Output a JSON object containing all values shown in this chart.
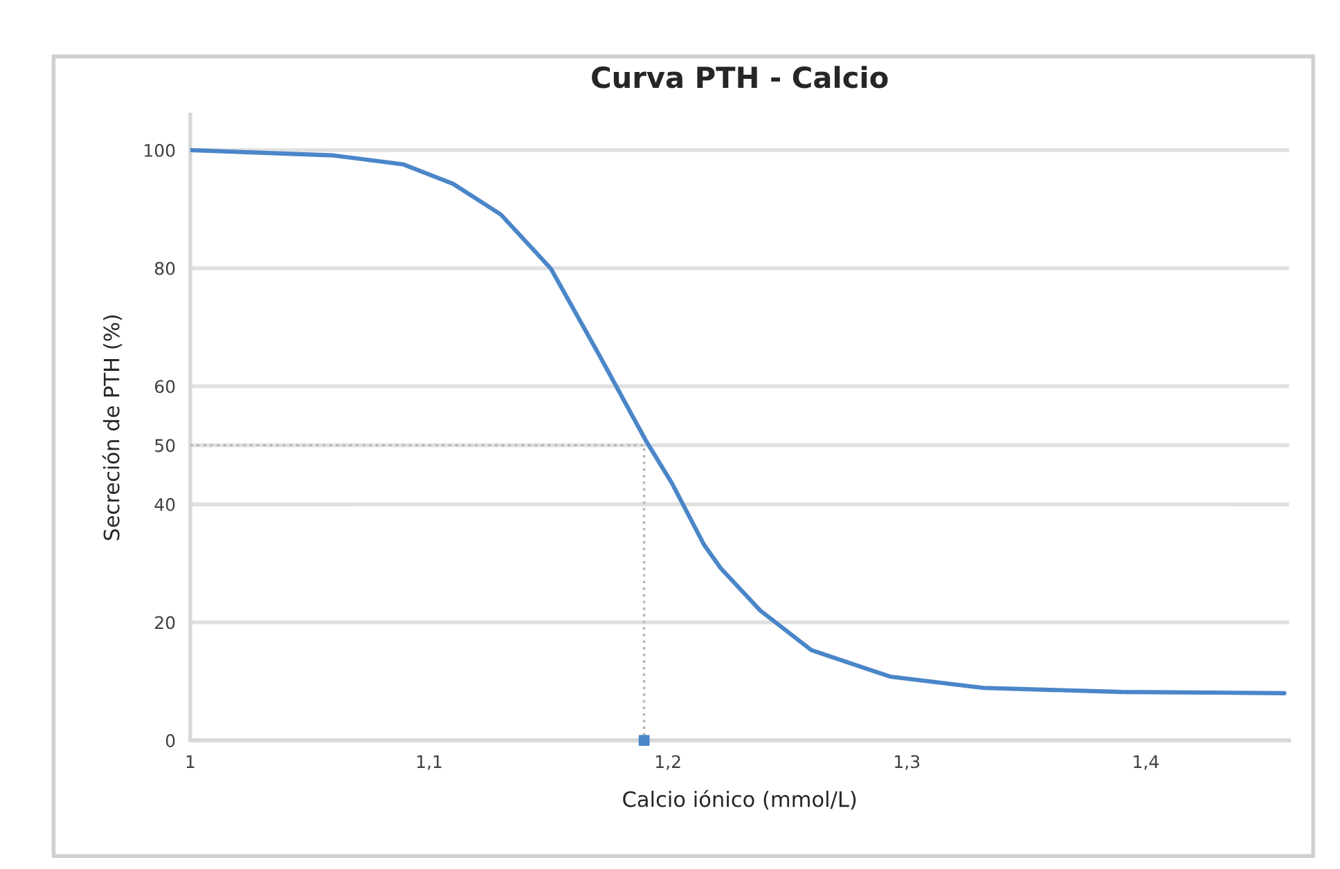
{
  "chart_data": {
    "type": "line",
    "title": "Curva PTH - Calcio",
    "xlabel": "Calcio iónico (mmol/L)",
    "ylabel": "Secreción de PTH (%)",
    "xlim": [
      1,
      1.46
    ],
    "xticks": [
      1,
      {
        "value": 1.1,
        "label": "1,1"
      },
      {
        "value": 1.2,
        "label": "1,2"
      },
      {
        "value": 1.3,
        "label": "1,3"
      },
      {
        "value": 1.4,
        "label": "1,4"
      }
    ],
    "ylim": [
      0,
      106
    ],
    "yticks": [
      0,
      20,
      40,
      50,
      60,
      80,
      100
    ],
    "grid": "y",
    "legend": false,
    "series": [
      {
        "color": "#4a86c8",
        "line_style": "solid",
        "marker": "none",
        "x": [
          1.0,
          1.06,
          1.089,
          1.11,
          1.13,
          1.151,
          1.172,
          1.191,
          1.2016,
          1.215,
          1.222,
          1.2386,
          1.26,
          1.293,
          1.332,
          1.39,
          1.458
        ],
        "values": [
          100,
          99.1,
          97.6,
          94.3,
          89.1,
          79.9,
          64.7,
          50.6,
          43.6,
          33.2,
          29.2,
          22.0,
          15.3,
          10.8,
          8.9,
          8.2,
          8.0
        ]
      },
      {
        "color": "#b8b8b8",
        "line_style": "dotted",
        "marker": "none",
        "x": [
          1.0,
          1.19,
          1.19
        ],
        "values": [
          50,
          50,
          0
        ]
      },
      {
        "type": "scatter",
        "color": "#4a86c8",
        "marker": "square",
        "x": [
          1.19
        ],
        "values": [
          0
        ]
      }
    ]
  }
}
